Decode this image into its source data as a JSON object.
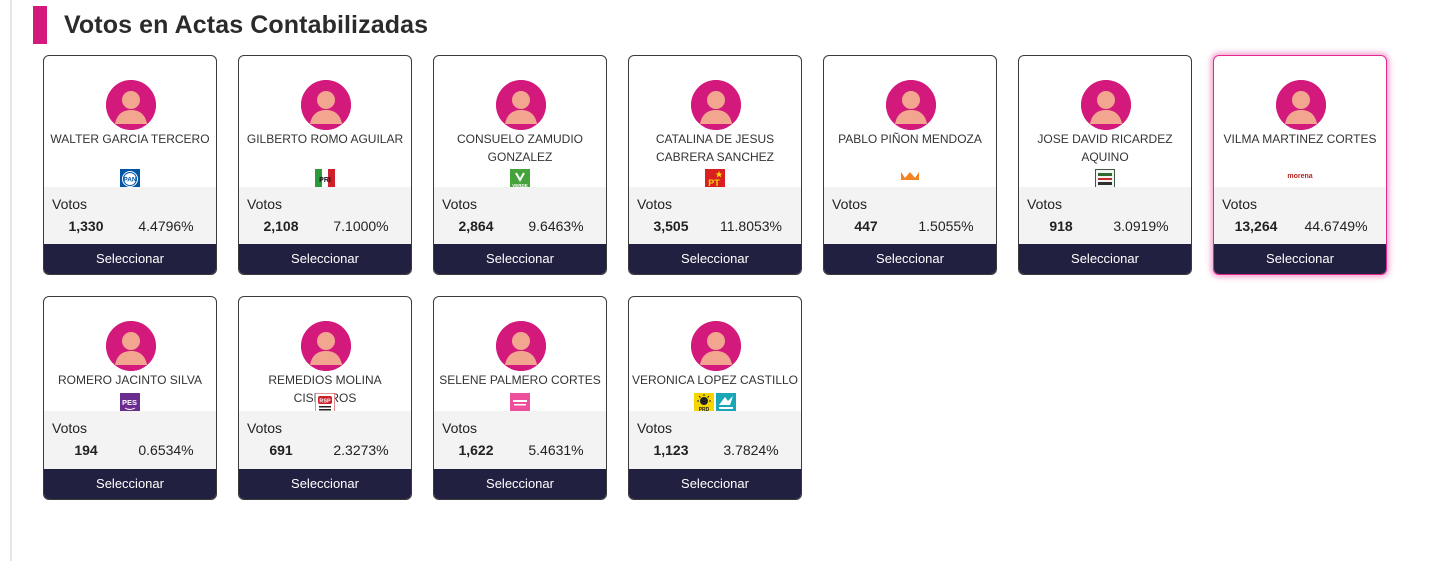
{
  "section": {
    "title": "Votos en Actas Contabilizadas",
    "accent_color": "#d3197c"
  },
  "labels": {
    "votes": "Votos",
    "select": "Seleccionar"
  },
  "candidates": [
    {
      "name": "WALTER GARCIA TERCERO",
      "party_icon": "pan-logo-icon",
      "party_text": "PAN",
      "votes": "1,330",
      "percent": "4.4796%"
    },
    {
      "name": "GILBERTO ROMO AGUILAR",
      "party_icon": "pri-logo-icon",
      "party_text": "PRI",
      "votes": "2,108",
      "percent": "7.1000%"
    },
    {
      "name": "CONSUELO ZAMUDIO GONZALEZ",
      "party_icon": "verde-logo-icon",
      "party_text": "VERDE",
      "votes": "2,864",
      "percent": "9.6463%"
    },
    {
      "name": "CATALINA DE JESUS CABRERA SANCHEZ",
      "party_icon": "pt-logo-icon",
      "party_text": "PT",
      "votes": "3,505",
      "percent": "11.8053%"
    },
    {
      "name": "PABLO PIÑON MENDOZA",
      "party_icon": "movimiento-ciudadano-logo-icon",
      "party_text": "",
      "votes": "447",
      "percent": "1.5055%"
    },
    {
      "name": "JOSE DAVID RICARDEZ AQUINO",
      "party_icon": "partido-local-logo-icon",
      "party_text": "",
      "votes": "918",
      "percent": "3.0919%"
    },
    {
      "name": "VILMA MARTINEZ CORTES",
      "party_icon": "morena-logo-icon",
      "party_text": "morena",
      "votes": "13,264",
      "percent": "44.6749%",
      "highlighted": true
    },
    {
      "name": "ROMERO JACINTO SILVA",
      "party_icon": "pes-logo-icon",
      "party_text": "PES",
      "votes": "194",
      "percent": "0.6534%"
    },
    {
      "name": "REMEDIOS MOLINA CISNEROS",
      "party_icon": "rsp-logo-icon",
      "party_text": "RSP",
      "votes": "691",
      "percent": "2.3273%"
    },
    {
      "name": "SELENE PALMERO CORTES",
      "party_icon": "fuerza-mexico-logo-icon",
      "party_text": "",
      "votes": "1,622",
      "percent": "5.4631%"
    },
    {
      "name": "VERONICA LOPEZ CASTILLO",
      "party_icon": "prd-coalition-logo-icon",
      "party_text": "PRD",
      "votes": "1,123",
      "percent": "3.7824%"
    }
  ]
}
